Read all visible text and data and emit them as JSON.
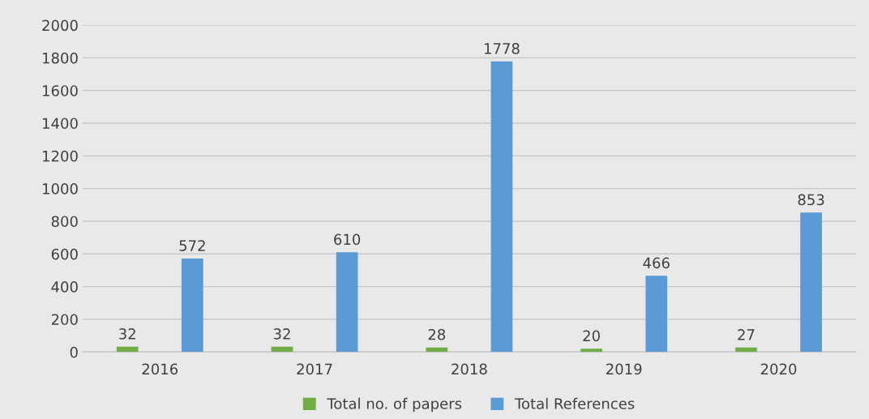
{
  "chart_data": {
    "type": "bar",
    "categories": [
      "2016",
      "2017",
      "2018",
      "2019",
      "2020"
    ],
    "series": [
      {
        "name": "Total no. of papers",
        "color": "#70ad47",
        "values": [
          32,
          32,
          28,
          20,
          27
        ]
      },
      {
        "name": "Total References",
        "color": "#5b9bd5",
        "values": [
          572,
          610,
          1778,
          466,
          853
        ]
      }
    ],
    "ylim": [
      0,
      2000
    ],
    "yticks": [
      0,
      200,
      400,
      600,
      800,
      1000,
      1200,
      1400,
      1600,
      1800,
      2000
    ],
    "grid": "y",
    "legend": "bottom",
    "data_labels": true
  }
}
